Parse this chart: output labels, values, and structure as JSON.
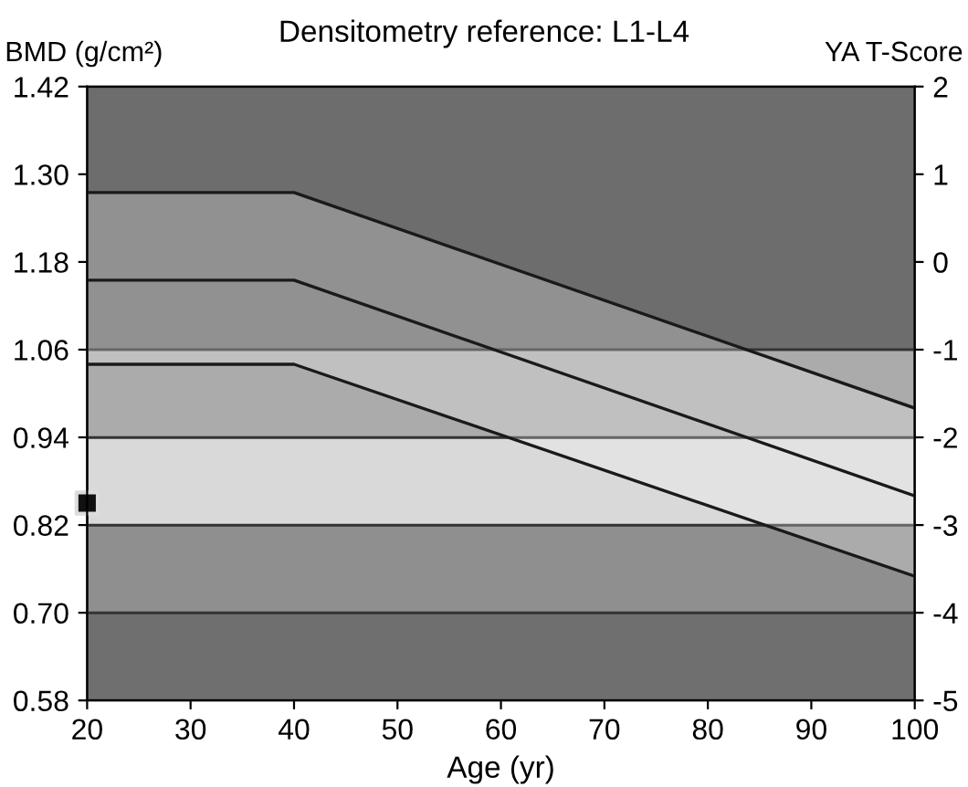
{
  "chart_data": {
    "type": "line",
    "title": "Densitometry reference: L1-L4",
    "xlabel": "Age (yr)",
    "ylabel": "BMD (g/cm²)",
    "y2label": "YA T-Score",
    "xlim": [
      20,
      100
    ],
    "xticks": [
      20,
      30,
      40,
      50,
      60,
      70,
      80,
      90,
      100
    ],
    "ylim": [
      0.58,
      1.42
    ],
    "yticks": [
      0.58,
      {
        "value": 0.7,
        "label": "0.70"
      },
      0.82,
      0.94,
      1.06,
      1.18,
      {
        "value": 1.3,
        "label": "1.30"
      },
      1.42
    ],
    "y2lim": [
      -5,
      2
    ],
    "y2ticks": [
      -5,
      -4,
      -3,
      -2,
      -1,
      0,
      1,
      2
    ],
    "grid": false,
    "legend": false,
    "line_style": "solid",
    "bands": [
      {
        "axis": "y",
        "from": 0.58,
        "to": 0.7,
        "color": "#6f6f6f"
      },
      {
        "axis": "y",
        "from": 0.7,
        "to": 0.82,
        "color": "#8f8f8f"
      },
      {
        "axis": "y",
        "from": 0.82,
        "to": 0.94,
        "color": "#d9d9d9"
      },
      {
        "axis": "y",
        "from": 0.94,
        "to": 1.06,
        "color": "#ababab"
      },
      {
        "axis": "y",
        "from": 1.06,
        "to": 1.42,
        "color": "#6d6d6d"
      }
    ],
    "series": [
      {
        "color": "#1a1a1a",
        "x": [
          20,
          40,
          100
        ],
        "values": [
          1.275,
          1.275,
          0.98
        ]
      },
      {
        "color": "#1a1a1a",
        "x": [
          20,
          40,
          100
        ],
        "values": [
          1.155,
          1.155,
          0.86
        ],
        "lower": [
          1.04,
          1.04,
          0.75
        ],
        "upper": [
          1.275,
          1.275,
          0.98
        ]
      },
      {
        "color": "#1a1a1a",
        "x": [
          20,
          40,
          100
        ],
        "values": [
          1.04,
          1.04,
          0.75
        ]
      },
      {
        "type": "scatter",
        "marker": "square",
        "color": "#111111",
        "x": [
          20
        ],
        "values": [
          0.85
        ]
      }
    ]
  }
}
